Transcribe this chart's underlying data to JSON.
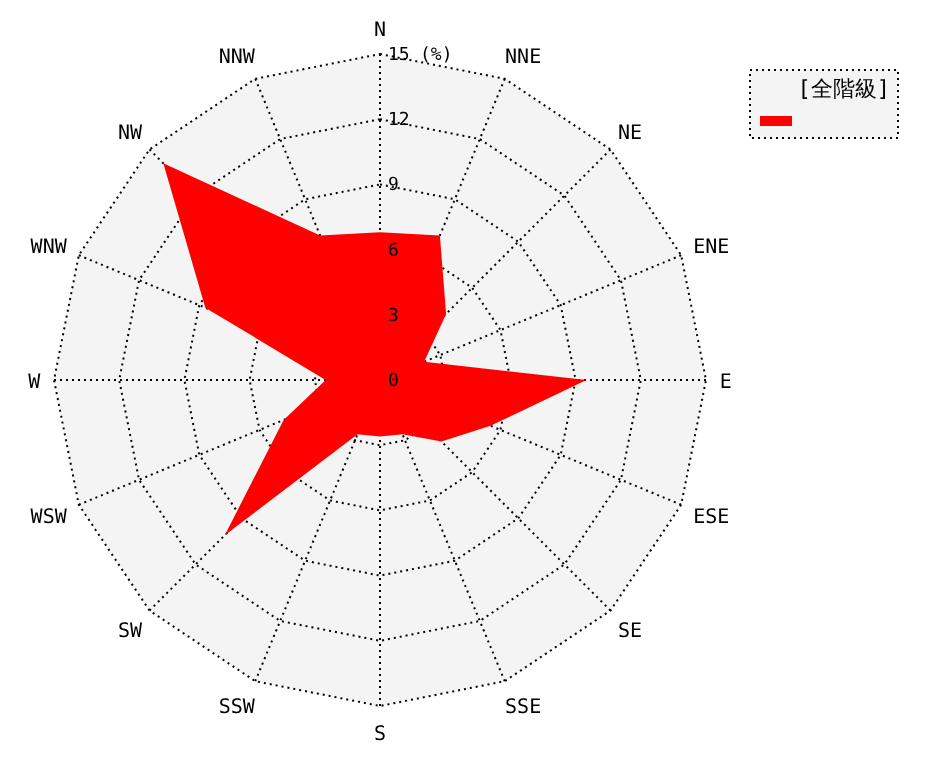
{
  "chart_data": {
    "type": "radar",
    "categories": [
      "N",
      "NNE",
      "NE",
      "ENE",
      "E",
      "ESE",
      "SE",
      "SSE",
      "S",
      "SSW",
      "SW",
      "WSW",
      "W",
      "WNW",
      "NW",
      "NNW"
    ],
    "series": [
      {
        "name": "[全階級]",
        "color": "#ff0000",
        "values": [
          6.8,
          7.2,
          4.3,
          2.2,
          9.5,
          5.5,
          4.0,
          2.7,
          2.6,
          2.7,
          10.1,
          4.8,
          2.5,
          8.7,
          14.1,
          7.2
        ]
      }
    ],
    "ylim": [
      0,
      15
    ],
    "yticks": [
      0,
      3,
      6,
      9,
      12,
      15
    ],
    "ylabel": "(%)",
    "legend": "top right",
    "grid": true
  }
}
